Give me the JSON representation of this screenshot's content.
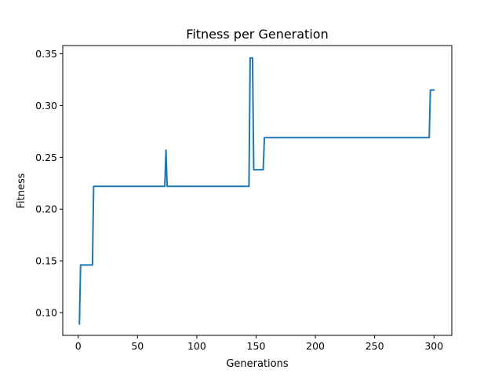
{
  "chart_data": {
    "type": "line",
    "title": "Fitness per Generation",
    "xlabel": "Generations",
    "ylabel": "Fitness",
    "xlim": [
      -13.05,
      315.05
    ],
    "ylim": [
      0.078,
      0.358
    ],
    "xticks": [
      0,
      50,
      100,
      150,
      200,
      250,
      300
    ],
    "xtick_labels": [
      "0",
      "50",
      "100",
      "150",
      "200",
      "250",
      "300"
    ],
    "yticks": [
      0.1,
      0.15,
      0.2,
      0.25,
      0.3,
      0.35
    ],
    "ytick_labels": [
      "0.10",
      "0.15",
      "0.20",
      "0.25",
      "0.30",
      "0.35"
    ],
    "grid": false,
    "line_color": "#1f77b4",
    "series": [
      {
        "x": [
          1,
          2,
          12,
          13,
          73,
          74,
          75,
          144,
          145,
          147,
          148,
          156,
          157,
          296,
          297,
          300
        ],
        "y": [
          0.089,
          0.146,
          0.146,
          0.222,
          0.222,
          0.257,
          0.222,
          0.222,
          0.346,
          0.346,
          0.238,
          0.238,
          0.269,
          0.269,
          0.315,
          0.315
        ]
      }
    ]
  }
}
